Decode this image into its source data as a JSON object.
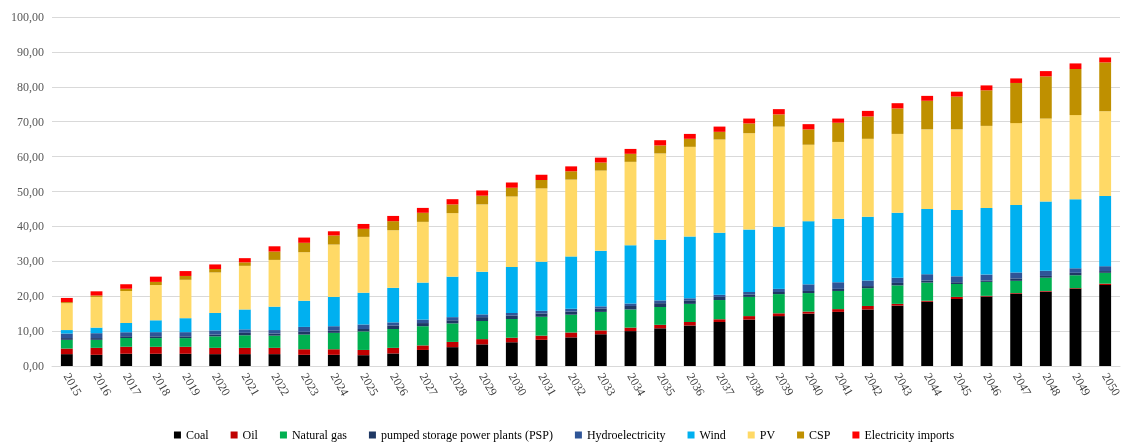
{
  "chart_data": {
    "type": "bar",
    "stacked": true,
    "grid": "y",
    "legend": "bottom",
    "categories": [
      "2015",
      "2016",
      "2017",
      "2018",
      "2019",
      "2020",
      "2021",
      "2022",
      "2023",
      "2024",
      "2025",
      "2026",
      "2027",
      "2028",
      "2029",
      "2030",
      "2031",
      "2032",
      "2033",
      "2034",
      "2035",
      "2036",
      "2037",
      "2038",
      "2039",
      "2040",
      "2041",
      "2042",
      "2043",
      "2044",
      "2045",
      "2046",
      "2047",
      "2048",
      "2049",
      "2050"
    ],
    "ylim": [
      0,
      100
    ],
    "yticks": [
      {
        "value": 0,
        "label": "0,00"
      },
      {
        "value": 10,
        "label": "10,00"
      },
      {
        "value": 20,
        "label": "20,00"
      },
      {
        "value": 30,
        "label": "30,00"
      },
      {
        "value": 40,
        "label": "40,00"
      },
      {
        "value": 50,
        "label": "50,00"
      },
      {
        "value": 60,
        "label": "60,00"
      },
      {
        "value": 70,
        "label": "70,00"
      },
      {
        "value": 80,
        "label": "80,00"
      },
      {
        "value": 90,
        "label": "90,00"
      },
      {
        "value": 100,
        "label": "100,00"
      }
    ],
    "series": [
      {
        "name": "Coal",
        "color": "#000000",
        "values": [
          3.4,
          3.2,
          3.5,
          3.5,
          3.5,
          3.4,
          3.4,
          3.4,
          3.2,
          3.2,
          3.1,
          3.6,
          4.6,
          5.4,
          6.2,
          6.8,
          7.5,
          8.2,
          9.1,
          10.0,
          10.8,
          11.6,
          12.6,
          13.3,
          14.3,
          15.0,
          15.5,
          16.2,
          17.3,
          18.4,
          19.2,
          19.9,
          20.7,
          21.3,
          22.1,
          23.2
        ]
      },
      {
        "name": "Oil",
        "color": "#c00000",
        "values": [
          1.6,
          2.0,
          2.0,
          2.0,
          2.0,
          1.8,
          1.8,
          1.8,
          1.6,
          1.6,
          1.5,
          1.6,
          1.3,
          1.5,
          1.5,
          1.3,
          1.2,
          1.4,
          1.1,
          1.0,
          1.0,
          1.0,
          0.8,
          1.0,
          0.8,
          0.6,
          0.8,
          1.0,
          0.5,
          0.3,
          0.6,
          0.2,
          0.2,
          0.2,
          0.2,
          0.4
        ]
      },
      {
        "name": "Natural gas",
        "color": "#00b050",
        "values": [
          2.5,
          2.3,
          2.5,
          2.5,
          2.5,
          3.3,
          3.6,
          3.5,
          4.2,
          4.7,
          5.3,
          5.4,
          5.5,
          5.3,
          5.2,
          5.4,
          5.4,
          5.1,
          5.3,
          5.2,
          5.1,
          5.2,
          5.5,
          5.5,
          5.5,
          5.3,
          5.2,
          5.1,
          5.3,
          5.2,
          3.7,
          4.0,
          3.5,
          3.8,
          3.7,
          3.1
        ]
      },
      {
        "name": "pumped storage power plants (PSP)",
        "color": "#1f3864",
        "values": [
          0.5,
          0.5,
          0.5,
          0.5,
          0.5,
          0.5,
          0.7,
          0.6,
          0.8,
          0.7,
          0.7,
          1.0,
          0.9,
          0.9,
          1.1,
          1.0,
          0.9,
          0.9,
          1.0,
          1.0,
          1.1,
          1.0,
          0.9,
          0.7,
          0.6,
          0.6,
          0.6,
          0.6,
          0.7,
          0.6,
          0.5,
          0.4,
          0.7,
          0.5,
          0.7,
          0.5
        ]
      },
      {
        "name": "Hydroelectricity",
        "color": "#2f5597",
        "values": [
          1.3,
          1.4,
          1.2,
          1.2,
          1.2,
          1.2,
          1.0,
          1.0,
          1.4,
          1.2,
          1.3,
          0.9,
          1.0,
          0.9,
          0.8,
          0.7,
          0.8,
          0.8,
          0.6,
          0.7,
          0.8,
          0.6,
          0.6,
          0.7,
          0.9,
          1.9,
          1.9,
          1.6,
          1.5,
          1.8,
          1.7,
          1.7,
          1.7,
          1.5,
          1.3,
          1.4
        ]
      },
      {
        "name": "Wind",
        "color": "#00b0f0",
        "values": [
          1.0,
          1.6,
          2.6,
          3.4,
          4.0,
          5.0,
          5.7,
          6.7,
          7.5,
          8.4,
          9.1,
          9.9,
          10.6,
          11.6,
          12.2,
          13.2,
          14.1,
          15.0,
          15.9,
          16.7,
          17.4,
          17.7,
          17.8,
          17.9,
          17.8,
          18.1,
          18.2,
          18.3,
          18.6,
          18.7,
          19.0,
          19.1,
          19.3,
          19.8,
          19.8,
          20.1
        ]
      },
      {
        "name": "PV",
        "color": "#ffd966",
        "values": [
          7.7,
          8.8,
          9.2,
          10.1,
          11.0,
          11.6,
          12.5,
          13.4,
          13.9,
          15.0,
          16.0,
          16.5,
          17.4,
          18.2,
          19.3,
          20.2,
          21.0,
          22.0,
          23.0,
          23.9,
          24.7,
          25.7,
          26.7,
          27.6,
          28.7,
          21.9,
          22.0,
          22.3,
          22.6,
          22.8,
          23.1,
          23.5,
          23.5,
          23.8,
          24.1,
          24.3
        ]
      },
      {
        "name": "CSP",
        "color": "#bf9000",
        "values": [
          0.3,
          0.4,
          0.6,
          0.9,
          1.1,
          1.0,
          1.0,
          2.4,
          2.7,
          2.6,
          2.3,
          2.6,
          2.6,
          2.5,
          2.5,
          2.5,
          2.4,
          2.4,
          2.3,
          2.3,
          2.3,
          2.3,
          2.2,
          2.8,
          3.5,
          4.4,
          5.5,
          6.4,
          7.3,
          8.2,
          9.4,
          10.2,
          11.5,
          12.1,
          13.2,
          14.0
        ]
      },
      {
        "name": "Electricity imports",
        "color": "#ff0000",
        "values": [
          1.2,
          1.2,
          1.3,
          1.5,
          1.4,
          1.3,
          1.2,
          1.5,
          1.5,
          1.2,
          1.4,
          1.5,
          1.4,
          1.5,
          1.5,
          1.5,
          1.5,
          1.4,
          1.4,
          1.4,
          1.5,
          1.4,
          1.5,
          1.4,
          1.5,
          1.5,
          1.2,
          1.6,
          1.5,
          1.4,
          1.4,
          1.4,
          1.3,
          1.5,
          1.6,
          1.4
        ]
      }
    ]
  }
}
